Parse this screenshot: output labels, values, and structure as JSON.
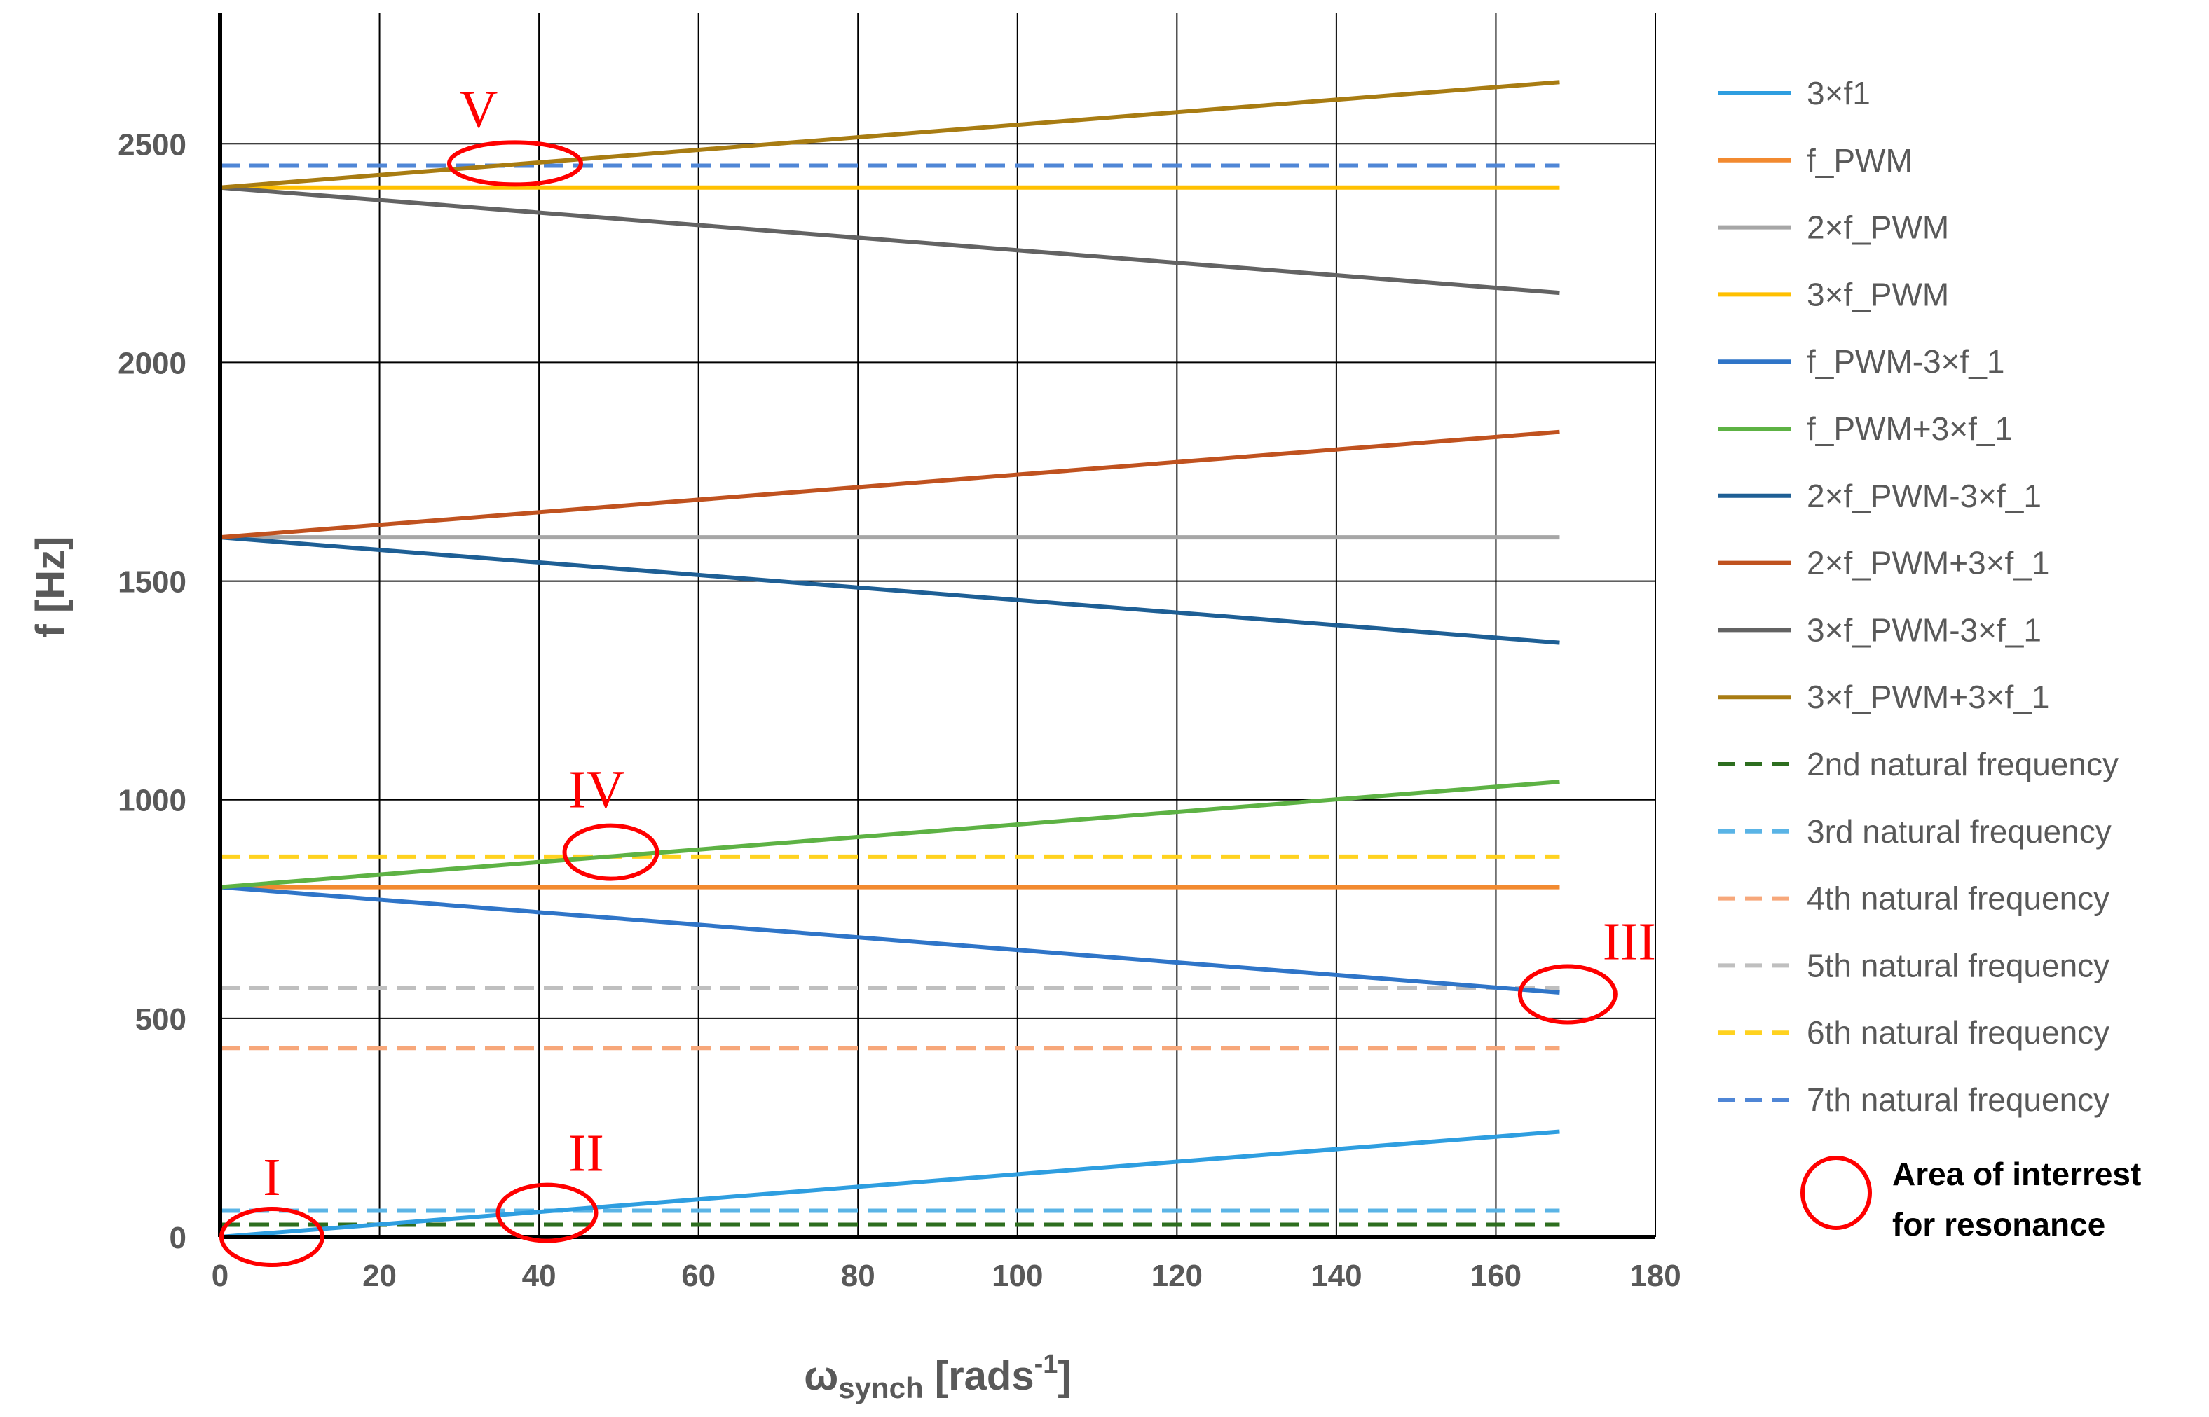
{
  "chart_data": {
    "type": "line",
    "title": "",
    "xlabel_main": "ω",
    "xlabel_sub": "synch",
    "xlabel_unit": " [rads",
    "xlabel_sup": "-1",
    "xlabel_close": "]",
    "ylabel": "f [Hz]",
    "xlim": [
      0,
      180
    ],
    "ylim": [
      0,
      2800
    ],
    "xticks": [
      0,
      20,
      40,
      60,
      80,
      100,
      120,
      140,
      160,
      180
    ],
    "yticks": [
      0,
      500,
      1000,
      1500,
      2000,
      2500
    ],
    "grid": true,
    "legend_position": "right",
    "series": [
      {
        "name": "3×f1",
        "x": [
          0,
          168
        ],
        "y": [
          0,
          241
        ],
        "color": "#2e9ee0",
        "dashed": false
      },
      {
        "name": "f_PWM",
        "x": [
          0,
          168
        ],
        "y": [
          800,
          800
        ],
        "color": "#f28a30",
        "dashed": false
      },
      {
        "name": "2×f_PWM",
        "x": [
          0,
          168
        ],
        "y": [
          1600,
          1600
        ],
        "color": "#a6a6a6",
        "dashed": false
      },
      {
        "name": "3×f_PWM",
        "x": [
          0,
          168
        ],
        "y": [
          2400,
          2400
        ],
        "color": "#ffc000",
        "dashed": false
      },
      {
        "name": "f_PWM-3×f_1",
        "x": [
          0,
          168
        ],
        "y": [
          800,
          559
        ],
        "color": "#2f75c8",
        "dashed": false
      },
      {
        "name": "f_PWM+3×f_1",
        "x": [
          0,
          168
        ],
        "y": [
          800,
          1041
        ],
        "color": "#5db244",
        "dashed": false
      },
      {
        "name": "2×f_PWM-3×f_1",
        "x": [
          0,
          168
        ],
        "y": [
          1600,
          1359
        ],
        "color": "#1e5f95",
        "dashed": false
      },
      {
        "name": "2×f_PWM+3×f_1",
        "x": [
          0,
          168
        ],
        "y": [
          1600,
          1841
        ],
        "color": "#c0521f",
        "dashed": false
      },
      {
        "name": "3×f_PWM-3×f_1",
        "x": [
          0,
          168
        ],
        "y": [
          2400,
          2159
        ],
        "color": "#636363",
        "dashed": false
      },
      {
        "name": "3×f_PWM+3×f_1",
        "x": [
          0,
          168
        ],
        "y": [
          2400,
          2641
        ],
        "color": "#a87c12",
        "dashed": false
      },
      {
        "name": "2nd natural frequency",
        "x": [
          0,
          168
        ],
        "y": [
          28,
          28
        ],
        "color": "#2d6e1f",
        "dashed": true
      },
      {
        "name": "3rd natural frequency",
        "x": [
          0,
          168
        ],
        "y": [
          60,
          60
        ],
        "color": "#5ab4e6",
        "dashed": true
      },
      {
        "name": "4th natural frequency",
        "x": [
          0,
          168
        ],
        "y": [
          432,
          432
        ],
        "color": "#f7a77a",
        "dashed": true
      },
      {
        "name": "5th natural frequency",
        "x": [
          0,
          168
        ],
        "y": [
          570,
          570
        ],
        "color": "#bfbfbf",
        "dashed": true
      },
      {
        "name": "6th natural frequency",
        "x": [
          0,
          168
        ],
        "y": [
          870,
          870
        ],
        "color": "#ffd21f",
        "dashed": true
      },
      {
        "name": "7th natural frequency",
        "x": [
          0,
          168
        ],
        "y": [
          2450,
          2450
        ],
        "color": "#4f86d6",
        "dashed": true
      }
    ],
    "annotations": [
      {
        "label": "I",
        "cx": 6.5,
        "cy": 0
      },
      {
        "label": "II",
        "cx": 41,
        "cy": 55
      },
      {
        "label": "III",
        "cx": 169,
        "cy": 555
      },
      {
        "label": "IV",
        "cx": 49,
        "cy": 880
      },
      {
        "label": "V",
        "cx": 37,
        "cy": 2455
      }
    ],
    "annotation_color": "#ff0000",
    "legend_extra": {
      "line1": "Area of interrest",
      "line2": "for resonance"
    }
  }
}
